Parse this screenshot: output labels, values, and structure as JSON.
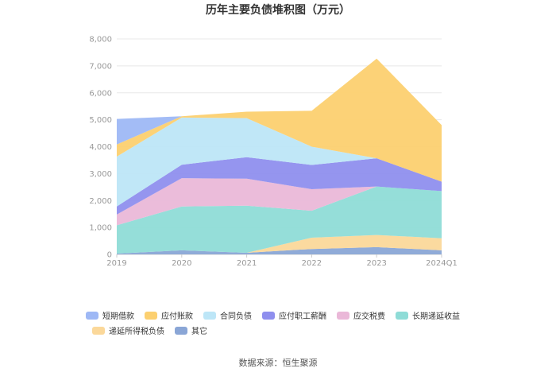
{
  "chart_data": {
    "type": "area",
    "stacked": true,
    "title": "历年主要负债堆积图（万元）",
    "source": "数据来源：恒生聚源",
    "xlabel": "",
    "ylabel": "",
    "categories": [
      "2019",
      "2020",
      "2021",
      "2022",
      "2023",
      "2024Q1"
    ],
    "yticks": [
      "0",
      "1,000",
      "2,000",
      "3,000",
      "4,000",
      "5,000",
      "6,000",
      "7,000",
      "8,000"
    ],
    "ylim": [
      0,
      8000
    ],
    "grid": true,
    "legend_position": "bottom",
    "series": [
      {
        "name": "其它",
        "color": "#8aa6d6",
        "values": [
          30,
          150,
          60,
          200,
          270,
          150
        ]
      },
      {
        "name": "递延所得税负债",
        "color": "#fbd89a",
        "values": [
          0,
          0,
          0,
          420,
          450,
          450
        ]
      },
      {
        "name": "长期递延收益",
        "color": "#8fdcd7",
        "values": [
          1050,
          1630,
          1750,
          1000,
          1800,
          1750
        ]
      },
      {
        "name": "应交税费",
        "color": "#eab8d8",
        "values": [
          400,
          1050,
          1000,
          800,
          0,
          0
        ]
      },
      {
        "name": "应付职工薪酬",
        "color": "#8f8fee",
        "values": [
          300,
          500,
          800,
          900,
          1050,
          350
        ]
      },
      {
        "name": "合同负债",
        "color": "#bde6f7",
        "values": [
          1850,
          1750,
          1450,
          680,
          0,
          0
        ]
      },
      {
        "name": "应付账款",
        "color": "#fcd070",
        "values": [
          450,
          50,
          240,
          1330,
          3700,
          2100
        ]
      },
      {
        "name": "短期借款",
        "color": "#9eb8f5",
        "values": [
          950,
          0,
          0,
          0,
          0,
          0
        ]
      }
    ],
    "legend_order": [
      "短期借款",
      "应付账款",
      "合同负债",
      "应付职工薪酬",
      "应交税费",
      "长期递延收益",
      "递延所得税负债",
      "其它"
    ]
  }
}
